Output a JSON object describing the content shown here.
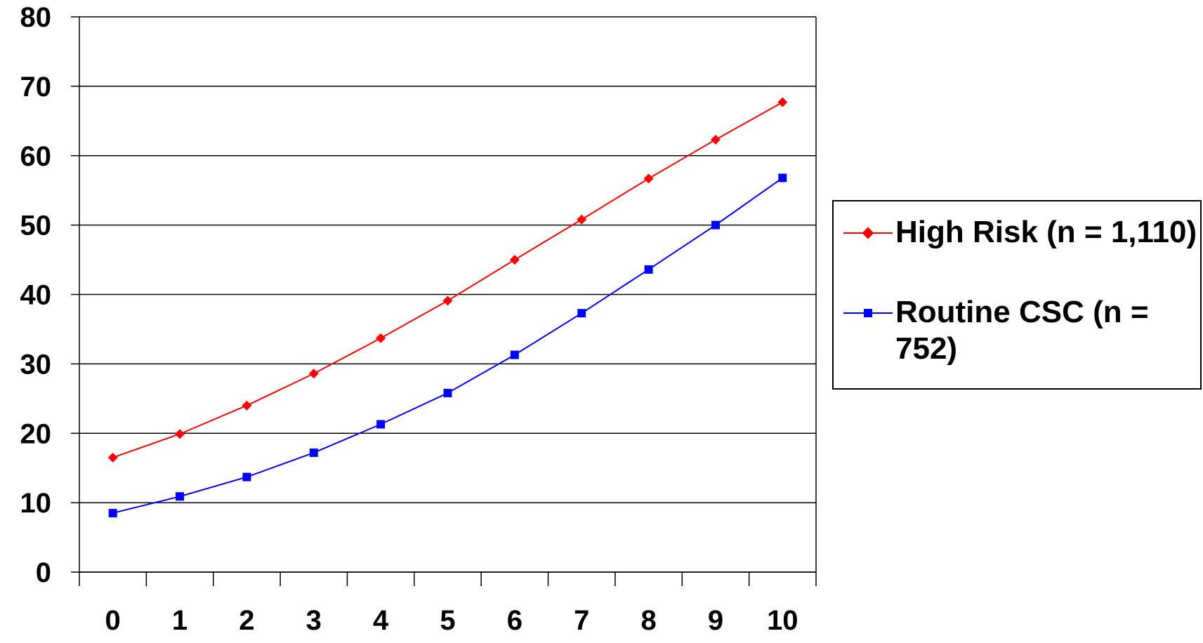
{
  "chart_data": {
    "type": "line",
    "title": "",
    "xlabel": "",
    "ylabel": "",
    "categories": [
      "0",
      "1",
      "2",
      "3",
      "4",
      "5",
      "6",
      "7",
      "8",
      "9",
      "10"
    ],
    "y_ticks": [
      "0",
      "10",
      "20",
      "30",
      "40",
      "50",
      "60",
      "70",
      "80"
    ],
    "ylim": [
      0,
      80
    ],
    "grid": "horizontal",
    "legend_position": "right",
    "series": [
      {
        "name": "High Risk (n = 1,110)",
        "color": "#ff0000",
        "marker": "diamond",
        "values": [
          16.5,
          19.9,
          24.0,
          28.6,
          33.7,
          39.1,
          45.0,
          50.8,
          56.7,
          62.3,
          67.7
        ]
      },
      {
        "name": "Routine CSC (n = 752)",
        "color": "#0000ff",
        "marker": "square",
        "values": [
          8.5,
          10.9,
          13.7,
          17.2,
          21.3,
          25.8,
          31.3,
          37.3,
          43.6,
          50.0,
          56.8
        ]
      }
    ]
  }
}
